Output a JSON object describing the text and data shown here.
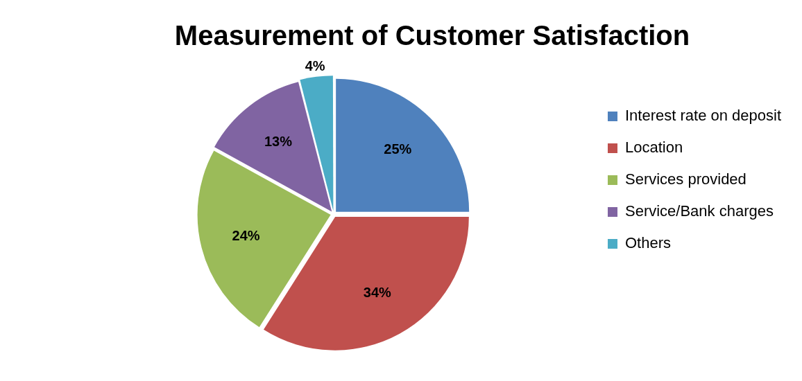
{
  "chart_data": {
    "type": "pie",
    "title": "Measurement of Customer Satisfaction",
    "categories": [
      "Interest rate on deposit",
      "Location",
      "Services provided",
      "Service/Bank charges",
      "Others"
    ],
    "values": [
      25,
      34,
      24,
      13,
      4
    ],
    "colors": [
      "#4f81bd",
      "#c0504d",
      "#9bbb59",
      "#8064a2",
      "#4bacc6"
    ],
    "value_labels": [
      "25%",
      "34%",
      "24%",
      "13%",
      "4%"
    ],
    "legend": "right"
  }
}
